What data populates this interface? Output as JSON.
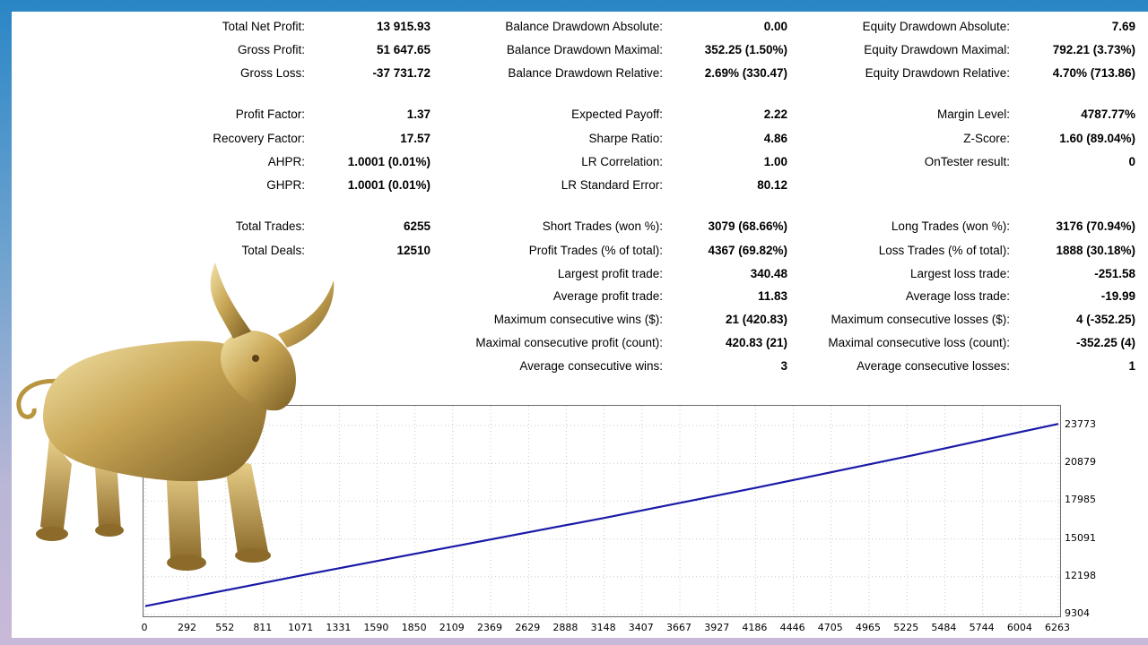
{
  "stats": {
    "col1": [
      {
        "label": "Total Net Profit:",
        "value": "13 915.93"
      },
      {
        "label": "Gross Profit:",
        "value": "51 647.65"
      },
      {
        "label": "Gross Loss:",
        "value": "-37 731.72"
      },
      {
        "label": "Profit Factor:",
        "value": "1.37"
      },
      {
        "label": "Recovery Factor:",
        "value": "17.57"
      },
      {
        "label": "AHPR:",
        "value": "1.0001 (0.01%)"
      },
      {
        "label": "GHPR:",
        "value": "1.0001 (0.01%)"
      },
      {
        "label": "Total Trades:",
        "value": "6255"
      },
      {
        "label": "Total Deals:",
        "value": "12510"
      }
    ],
    "col2": [
      {
        "label": "Balance Drawdown Absolute:",
        "value": "0.00"
      },
      {
        "label": "Balance Drawdown Maximal:",
        "value": "352.25 (1.50%)"
      },
      {
        "label": "Balance Drawdown Relative:",
        "value": "2.69% (330.47)"
      },
      {
        "label": "Expected Payoff:",
        "value": "2.22"
      },
      {
        "label": "Sharpe Ratio:",
        "value": "4.86"
      },
      {
        "label": "LR Correlation:",
        "value": "1.00"
      },
      {
        "label": "LR Standard Error:",
        "value": "80.12"
      },
      {
        "label": "Short Trades (won %):",
        "value": "3079 (68.66%)"
      },
      {
        "label": "Profit Trades (% of total):",
        "value": "4367 (69.82%)"
      },
      {
        "label": "Largest profit trade:",
        "value": "340.48"
      },
      {
        "label": "Average profit trade:",
        "value": "11.83"
      },
      {
        "label": "Maximum consecutive wins ($):",
        "value": "21 (420.83)"
      },
      {
        "label": "Maximal consecutive profit (count):",
        "value": "420.83 (21)"
      },
      {
        "label": "Average consecutive wins:",
        "value": "3"
      }
    ],
    "col3": [
      {
        "label": "Equity Drawdown Absolute:",
        "value": "7.69"
      },
      {
        "label": "Equity Drawdown Maximal:",
        "value": "792.21 (3.73%)"
      },
      {
        "label": "Equity Drawdown Relative:",
        "value": "4.70% (713.86)"
      },
      {
        "label": "Margin Level:",
        "value": "4787.77%"
      },
      {
        "label": "Z-Score:",
        "value": "1.60 (89.04%)"
      },
      {
        "label": "OnTester result:",
        "value": "0"
      },
      {
        "label": "Long Trades (won %):",
        "value": "3176 (70.94%)"
      },
      {
        "label": "Loss Trades (% of total):",
        "value": "1888 (30.18%)"
      },
      {
        "label": "Largest loss trade:",
        "value": "-251.58"
      },
      {
        "label": "Average loss trade:",
        "value": "-19.99"
      },
      {
        "label": "Maximum consecutive losses ($):",
        "value": "4 (-352.25)"
      },
      {
        "label": "Maximal consecutive loss (count):",
        "value": "-352.25 (4)"
      },
      {
        "label": "Average consecutive losses:",
        "value": "1"
      }
    ]
  },
  "chart_data": {
    "type": "line",
    "x_ticks": [
      "0",
      "292",
      "552",
      "811",
      "1071",
      "1331",
      "1590",
      "1850",
      "2109",
      "2369",
      "2629",
      "2888",
      "3148",
      "3407",
      "3667",
      "3927",
      "4186",
      "4446",
      "4705",
      "4965",
      "5225",
      "5484",
      "5744",
      "6004",
      "6263"
    ],
    "y_ticks": [
      "23773",
      "20879",
      "17985",
      "15091",
      "12198",
      "9304"
    ],
    "xlim": [
      0,
      6263
    ],
    "ylim": [
      9304,
      23773
    ],
    "grid": true,
    "x": [
      0,
      1071,
      2109,
      3148,
      4186,
      5225,
      6263
    ],
    "y": [
      9950,
      12300,
      14500,
      16700,
      19000,
      21400,
      23900
    ],
    "line_color": "#1a1aa8"
  },
  "colors": {
    "bull_gold": "#c8a656",
    "grid": "#c8c8c8"
  }
}
